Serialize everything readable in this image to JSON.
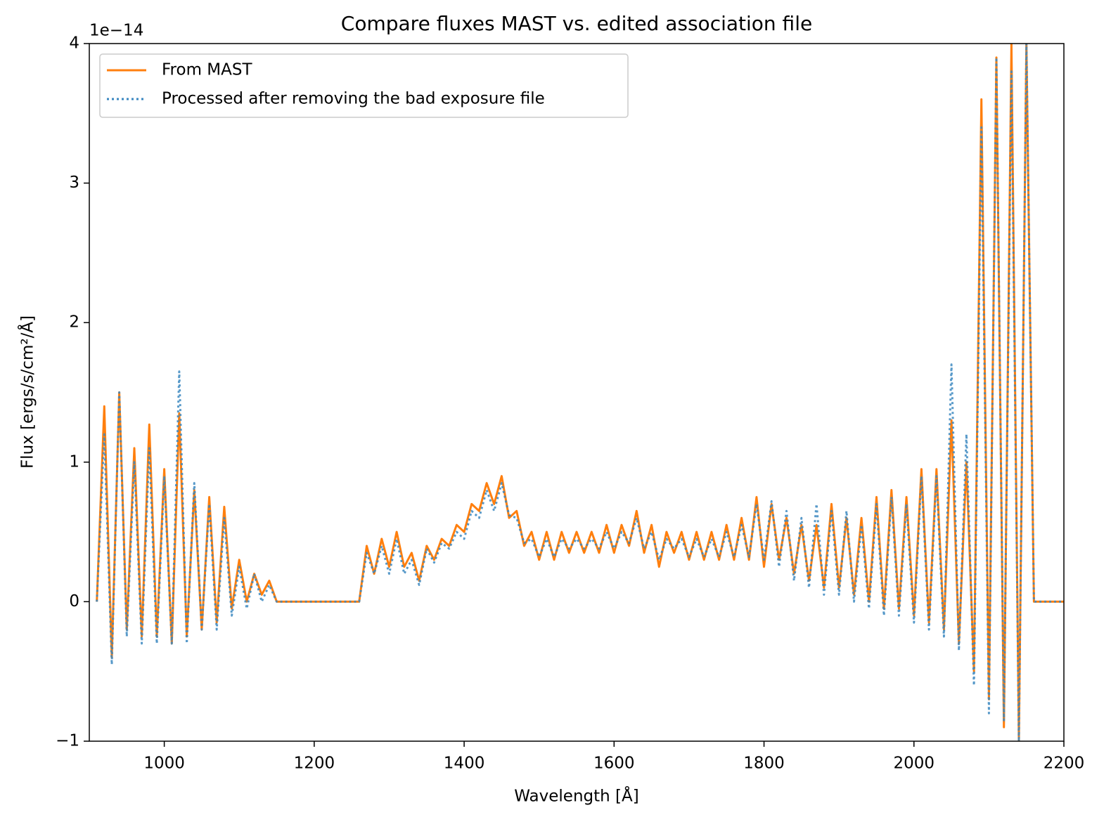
{
  "chart_data": {
    "type": "line",
    "title": "Compare fluxes MAST vs. edited association file",
    "x_label": "Wavelength [Å]",
    "y_label": "Flux [ergs/s/cm²/Å]",
    "y_offset_label": "1e−14",
    "xlim": [
      900,
      2200
    ],
    "ylim": [
      -1,
      4
    ],
    "xticks": [
      1000,
      1200,
      1400,
      1600,
      1800,
      2000,
      2200
    ],
    "yticks": [
      {
        "value": -1,
        "label": "−1"
      },
      0,
      1,
      2,
      3,
      4
    ],
    "legend": "upper left",
    "x": [
      910,
      920,
      930,
      940,
      950,
      960,
      970,
      980,
      990,
      1000,
      1010,
      1020,
      1030,
      1040,
      1050,
      1060,
      1070,
      1080,
      1090,
      1100,
      1110,
      1120,
      1130,
      1140,
      1150,
      1160,
      1170,
      1180,
      1190,
      1200,
      1210,
      1220,
      1230,
      1240,
      1250,
      1260,
      1270,
      1280,
      1290,
      1300,
      1310,
      1320,
      1330,
      1340,
      1350,
      1360,
      1370,
      1380,
      1390,
      1400,
      1410,
      1420,
      1430,
      1440,
      1450,
      1460,
      1470,
      1480,
      1490,
      1500,
      1510,
      1520,
      1530,
      1540,
      1550,
      1560,
      1570,
      1580,
      1590,
      1600,
      1610,
      1620,
      1630,
      1640,
      1650,
      1660,
      1670,
      1680,
      1690,
      1700,
      1710,
      1720,
      1730,
      1740,
      1750,
      1760,
      1770,
      1780,
      1790,
      1800,
      1810,
      1820,
      1830,
      1840,
      1850,
      1860,
      1870,
      1880,
      1890,
      1900,
      1910,
      1920,
      1930,
      1940,
      1950,
      1960,
      1970,
      1980,
      1990,
      2000,
      2010,
      2020,
      2030,
      2040,
      2050,
      2060,
      2070,
      2080,
      2090,
      2100,
      2110,
      2120,
      2130,
      2140,
      2150,
      2160,
      2170,
      2180,
      2190,
      2200
    ],
    "series": [
      {
        "name": "From MAST",
        "color": "#ff7f0e",
        "linestyle": "solid",
        "values": [
          0,
          1.4,
          -0.4,
          1.5,
          -0.2,
          1.1,
          -0.25,
          1.27,
          -0.25,
          0.95,
          -0.3,
          1.35,
          -0.25,
          0.8,
          -0.2,
          0.75,
          -0.15,
          0.68,
          -0.05,
          0.3,
          0.0,
          0.2,
          0.05,
          0.15,
          0.0,
          0,
          0,
          0,
          0,
          0,
          0,
          0,
          0,
          0,
          0,
          0,
          0.4,
          0.2,
          0.45,
          0.25,
          0.5,
          0.25,
          0.35,
          0.15,
          0.4,
          0.3,
          0.45,
          0.4,
          0.55,
          0.5,
          0.7,
          0.65,
          0.85,
          0.7,
          0.9,
          0.6,
          0.65,
          0.4,
          0.5,
          0.3,
          0.5,
          0.3,
          0.5,
          0.35,
          0.5,
          0.35,
          0.5,
          0.35,
          0.55,
          0.35,
          0.55,
          0.4,
          0.65,
          0.35,
          0.55,
          0.25,
          0.5,
          0.35,
          0.5,
          0.3,
          0.5,
          0.3,
          0.5,
          0.3,
          0.55,
          0.3,
          0.6,
          0.3,
          0.75,
          0.25,
          0.7,
          0.3,
          0.6,
          0.2,
          0.55,
          0.15,
          0.55,
          0.1,
          0.7,
          0.1,
          0.6,
          0.05,
          0.6,
          0.0,
          0.75,
          -0.05,
          0.8,
          -0.05,
          0.75,
          -0.1,
          0.95,
          -0.15,
          0.95,
          -0.2,
          1.3,
          -0.3,
          1.0,
          -0.5,
          3.6,
          -0.7,
          3.9,
          -0.9,
          4.0,
          -1.0,
          4.0,
          0,
          0,
          0,
          0,
          0
        ]
      },
      {
        "name": "Processed after removing the bad exposure file",
        "color": "#3a87c0",
        "linestyle": "dotted",
        "values": [
          0,
          1.2,
          -0.45,
          1.5,
          -0.25,
          1.0,
          -0.3,
          1.1,
          -0.3,
          0.9,
          -0.3,
          1.65,
          -0.3,
          0.85,
          -0.2,
          0.7,
          -0.2,
          0.6,
          -0.1,
          0.25,
          -0.05,
          0.2,
          0.0,
          0.12,
          0.0,
          0,
          0,
          0,
          0,
          0,
          0,
          0,
          0,
          0,
          0,
          0,
          0.35,
          0.2,
          0.4,
          0.2,
          0.45,
          0.2,
          0.3,
          0.12,
          0.38,
          0.28,
          0.42,
          0.38,
          0.5,
          0.45,
          0.65,
          0.6,
          0.8,
          0.65,
          0.85,
          0.62,
          0.6,
          0.42,
          0.45,
          0.32,
          0.45,
          0.32,
          0.45,
          0.38,
          0.45,
          0.38,
          0.45,
          0.38,
          0.5,
          0.38,
          0.5,
          0.42,
          0.6,
          0.38,
          0.5,
          0.3,
          0.45,
          0.38,
          0.45,
          0.32,
          0.45,
          0.32,
          0.45,
          0.32,
          0.5,
          0.32,
          0.55,
          0.32,
          0.7,
          0.3,
          0.72,
          0.25,
          0.65,
          0.15,
          0.6,
          0.1,
          0.7,
          0.05,
          0.65,
          0.05,
          0.65,
          0.0,
          0.55,
          -0.05,
          0.7,
          -0.1,
          0.75,
          -0.1,
          0.7,
          -0.15,
          0.9,
          -0.2,
          0.9,
          -0.25,
          1.7,
          -0.35,
          1.2,
          -0.6,
          3.4,
          -0.8,
          3.9,
          -0.85,
          3.8,
          -1.0,
          4.0,
          0,
          0,
          0,
          0,
          0
        ]
      }
    ]
  }
}
